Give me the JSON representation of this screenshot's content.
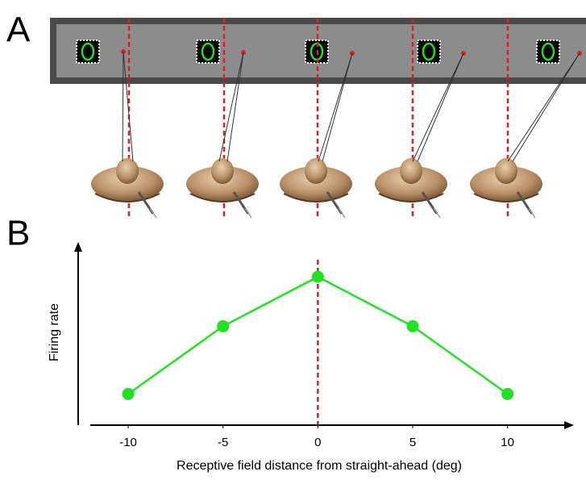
{
  "panels": {
    "a": "A",
    "b": "B"
  },
  "chart_data": {
    "type": "line",
    "x_label": "Receptive field distance from straight-ahead (deg)",
    "y_label": "Firing rate",
    "x": [
      -10,
      -5,
      0,
      5,
      10
    ],
    "series": [
      {
        "color": "#22e022",
        "values": [
          0.17,
          0.54,
          0.81,
          0.54,
          0.17
        ]
      }
    ],
    "xlim": [
      -12,
      13.5
    ],
    "xticks": [
      -10,
      -5,
      0,
      5,
      10
    ],
    "ylim": [
      0,
      1
    ],
    "reference_line": {
      "x": 0,
      "color": "#e02020"
    }
  }
}
